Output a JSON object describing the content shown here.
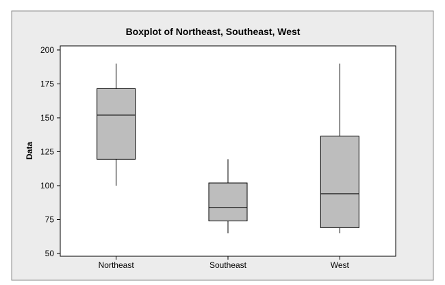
{
  "chart_data": {
    "type": "boxplot",
    "title": "Boxplot of Northeast, Southeast, West",
    "xlabel": "",
    "ylabel": "Data",
    "ylim": [
      48,
      203
    ],
    "yticks": [
      50,
      75,
      100,
      125,
      150,
      175,
      200
    ],
    "categories": [
      "Northeast",
      "Southeast",
      "West"
    ],
    "boxes": [
      {
        "name": "Northeast",
        "whisker_low": 100,
        "q1": 119.5,
        "median": 152,
        "q3": 171.5,
        "whisker_high": 190
      },
      {
        "name": "Southeast",
        "whisker_low": 65,
        "q1": 74,
        "median": 84,
        "q3": 102,
        "whisker_high": 119.5
      },
      {
        "name": "West",
        "whisker_low": 65,
        "q1": 69,
        "median": 94,
        "q3": 136.5,
        "whisker_high": 190
      }
    ],
    "grid": false,
    "legend": "none"
  },
  "colors": {
    "frame_background": "#ececec",
    "plot_background": "#ffffff",
    "box_fill": "#bdbdbd",
    "line": "#000000"
  }
}
